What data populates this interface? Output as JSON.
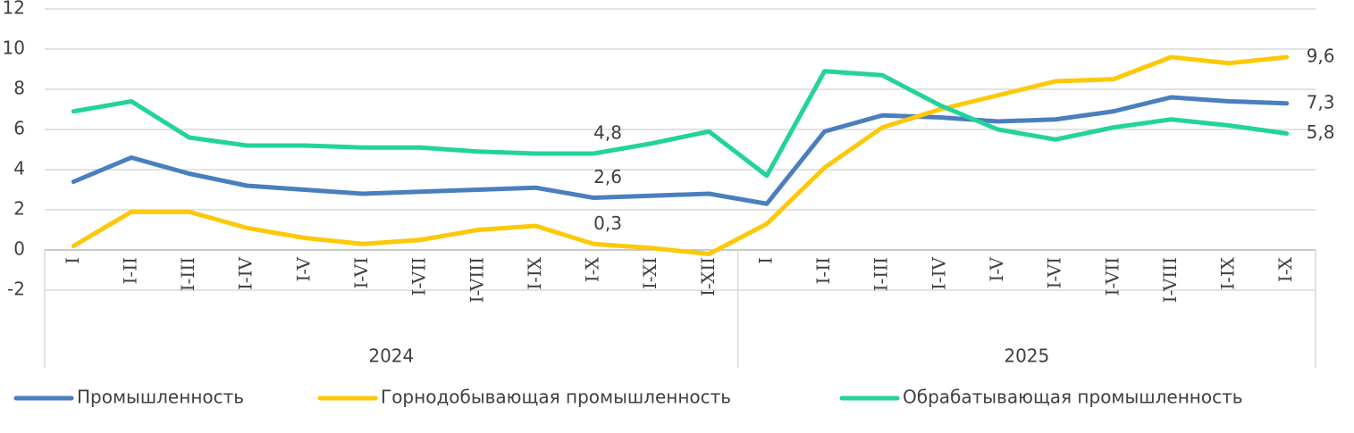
{
  "chart_data": {
    "type": "line",
    "categories": [
      "I",
      "I-II",
      "I-III",
      "I-IV",
      "I-V",
      "I-VI",
      "I-VII",
      "I-VIII",
      "I-IX",
      "I-X",
      "I-XI",
      "I-XII",
      "I",
      "I-II",
      "I-III",
      "I-IV",
      "I-V",
      "I-VI",
      "I-VII",
      "I-VIII",
      "I-IX",
      "I-X"
    ],
    "groups": [
      "2024",
      "2025"
    ],
    "ylim": [
      -2,
      12
    ],
    "yticks": [
      -2,
      0,
      2,
      4,
      6,
      8,
      10,
      12
    ],
    "grid": true,
    "legend": "bottom",
    "series": [
      {
        "name": "Промышленность",
        "color": "#4a7ebf",
        "values": [
          3.4,
          4.6,
          3.8,
          3.2,
          3.0,
          2.8,
          2.9,
          3.0,
          3.1,
          2.6,
          2.7,
          2.8,
          2.3,
          5.9,
          6.7,
          6.6,
          6.4,
          6.5,
          6.9,
          7.6,
          7.4,
          7.3
        ],
        "value_labels": [
          null,
          null,
          null,
          null,
          null,
          null,
          null,
          null,
          null,
          "2,6",
          null,
          null,
          null,
          null,
          null,
          null,
          null,
          null,
          null,
          null,
          null,
          "7,3"
        ]
      },
      {
        "name": "Горнодобывающая промышленность",
        "color": "#fcc808",
        "values": [
          0.2,
          1.9,
          1.9,
          1.1,
          0.6,
          0.3,
          0.5,
          1.0,
          1.2,
          0.3,
          0.1,
          -0.2,
          1.3,
          4.1,
          6.1,
          7.0,
          7.7,
          8.4,
          8.5,
          9.6,
          9.3,
          9.6
        ],
        "value_labels": [
          null,
          null,
          null,
          null,
          null,
          null,
          null,
          null,
          null,
          "0,3",
          null,
          null,
          null,
          null,
          null,
          null,
          null,
          null,
          null,
          null,
          null,
          "9,6"
        ]
      },
      {
        "name": "Обрабатывающая промышленность",
        "color": "#23d39c",
        "values": [
          6.9,
          7.4,
          5.6,
          5.2,
          5.2,
          5.1,
          5.1,
          4.9,
          4.8,
          4.8,
          5.3,
          5.9,
          3.7,
          8.9,
          8.7,
          7.2,
          6.0,
          5.5,
          6.1,
          6.5,
          6.2,
          5.8
        ],
        "value_labels": [
          null,
          null,
          null,
          null,
          null,
          null,
          null,
          null,
          null,
          "4,8",
          null,
          null,
          null,
          null,
          null,
          null,
          null,
          null,
          null,
          null,
          null,
          "5,8"
        ]
      }
    ]
  }
}
